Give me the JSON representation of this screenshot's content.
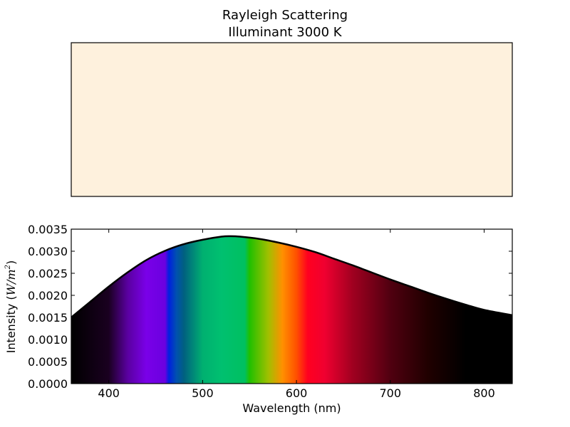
{
  "figure": {
    "title_line1": "Rayleigh Scattering",
    "title_line2": "Illuminant 3000 K"
  },
  "color_swatch": {
    "color": "#fef1dd"
  },
  "chart_data": {
    "type": "area",
    "xlabel": "Wavelength (nm)",
    "ylabel_text": "Intensity (",
    "ylabel_math": "W/m",
    "ylabel_exp": "2",
    "ylabel_close": ")",
    "xlim": [
      360,
      830
    ],
    "ylim": [
      0,
      0.0035
    ],
    "xticks": [
      400,
      500,
      600,
      700,
      800
    ],
    "yticks": [
      0.0,
      0.0005,
      0.001,
      0.0015,
      0.002,
      0.0025,
      0.003,
      0.0035
    ],
    "ytick_labels": [
      "0.0000",
      "0.0005",
      "0.0010",
      "0.0015",
      "0.0020",
      "0.0025",
      "0.0030",
      "0.0035"
    ],
    "fill": "spectrum",
    "x": [
      360,
      380,
      400,
      420,
      440,
      460,
      480,
      500,
      520,
      530,
      540,
      560,
      580,
      600,
      620,
      640,
      660,
      680,
      700,
      720,
      740,
      760,
      780,
      800,
      830
    ],
    "y": [
      0.0015,
      0.00185,
      0.0022,
      0.00252,
      0.0028,
      0.00301,
      0.00316,
      0.00326,
      0.00333,
      0.00334,
      0.00333,
      0.00328,
      0.0032,
      0.0031,
      0.00298,
      0.00283,
      0.00268,
      0.00252,
      0.00236,
      0.00221,
      0.00206,
      0.00192,
      0.00179,
      0.00167,
      0.00155
    ]
  }
}
